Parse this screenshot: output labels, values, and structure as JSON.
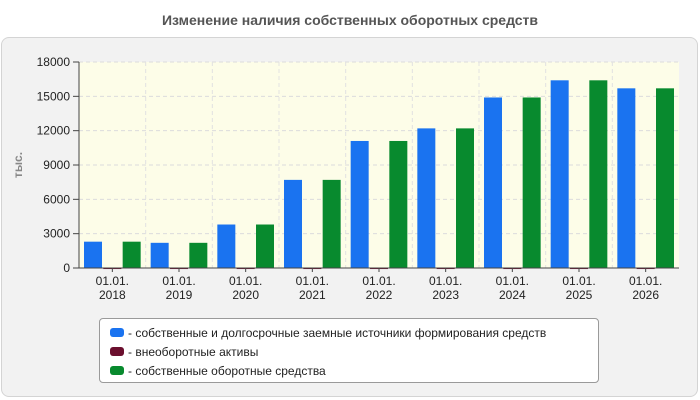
{
  "title": "Изменение наличия собственных оборотных средств",
  "chart_data": {
    "type": "bar",
    "ylabel": "тыс.",
    "xlabel": "",
    "ylim": [
      0,
      18000
    ],
    "yticks": [
      0,
      3000,
      6000,
      9000,
      12000,
      15000,
      18000
    ],
    "grid": true,
    "legend_position": "bottom",
    "categories": [
      [
        "01.01.",
        "2018"
      ],
      [
        "01.01.",
        "2019"
      ],
      [
        "01.01.",
        "2020"
      ],
      [
        "01.01.",
        "2021"
      ],
      [
        "01.01.",
        "2022"
      ],
      [
        "01.01.",
        "2023"
      ],
      [
        "01.01.",
        "2024"
      ],
      [
        "01.01.",
        "2025"
      ],
      [
        "01.01.",
        "2026"
      ]
    ],
    "series": [
      {
        "name": "- собственные и долгосрочные заемные источники формирования средств",
        "color": "#1a73f0",
        "values": [
          2300,
          2200,
          3800,
          7700,
          11100,
          12200,
          14900,
          16400,
          15700
        ]
      },
      {
        "name": "- внеоборотные активы",
        "color": "#6b0f2e",
        "values": [
          40,
          40,
          40,
          40,
          40,
          40,
          40,
          40,
          40
        ]
      },
      {
        "name": "- собственные оборотные средства",
        "color": "#088a2e",
        "values": [
          2300,
          2200,
          3800,
          7700,
          11100,
          12200,
          14900,
          16400,
          15700
        ]
      }
    ]
  }
}
